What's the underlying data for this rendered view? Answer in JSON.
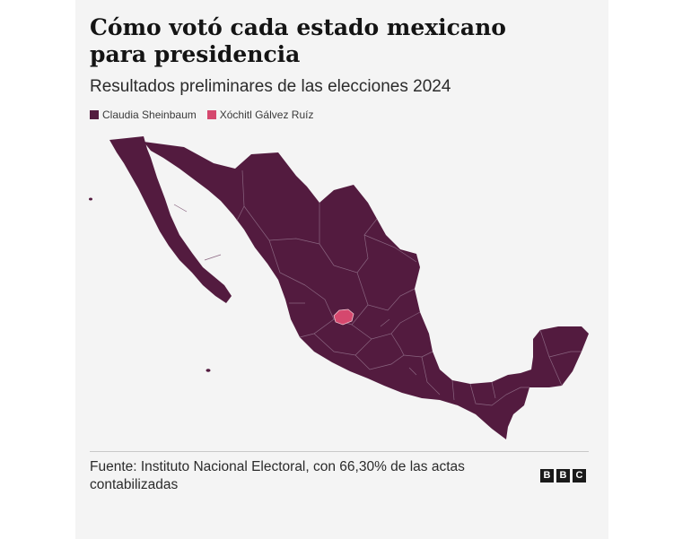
{
  "title": "Cómo votó cada estado mexicano para presidencia",
  "subtitle": "Resultados preliminares de las elecciones 2024",
  "legend": [
    {
      "label": "Claudia Sheinbaum",
      "color": "#531b3f"
    },
    {
      "label": "Xóchitl Gálvez Ruíz",
      "color": "#d5486e"
    }
  ],
  "map": {
    "winners": {
      "mainland": "Claudia Sheinbaum",
      "baja_california": "Claudia Sheinbaum",
      "baja_california_sur": "Claudia Sheinbaum",
      "aguascalientes": "Xóchitl Gálvez Ruíz"
    }
  },
  "source": "Fuente: Instituto Nacional Electoral, con 66,30% de las actas contabilizadas",
  "logo": {
    "letters": [
      "B",
      "B",
      "C"
    ]
  }
}
